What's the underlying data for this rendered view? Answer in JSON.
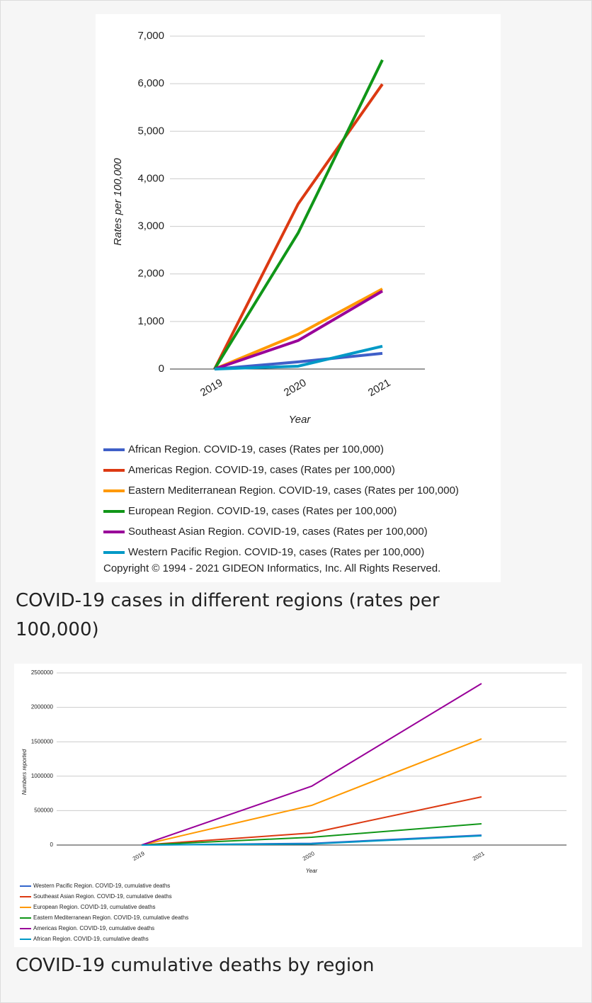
{
  "chart_data": [
    {
      "type": "line",
      "ylabel": "Rates per 100,000",
      "xlabel": "Year",
      "categories": [
        "2019",
        "2020",
        "2021"
      ],
      "ylim": [
        0,
        7000
      ],
      "yticks": [
        0,
        {
          "value": 1000,
          "label": "1,000"
        },
        {
          "value": 2000,
          "label": "2,000"
        },
        {
          "value": 3000,
          "label": "3,000"
        },
        {
          "value": 4000,
          "label": "4,000"
        },
        {
          "value": 5000,
          "label": "5,000"
        },
        {
          "value": 6000,
          "label": "6,000"
        },
        {
          "value": 7000,
          "label": "7,000"
        }
      ],
      "grid": true,
      "series": [
        {
          "name": "African Region. COVID-19, cases (Rates per 100,000)",
          "color": "#3f5fc8",
          "values": [
            0,
            150,
            330
          ]
        },
        {
          "name": "Americas Region. COVID-19, cases (Rates per 100,000)",
          "color": "#dc3912",
          "values": [
            0,
            3470,
            5990
          ]
        },
        {
          "name": "Eastern Mediterranean Region. COVID-19, cases (Rates per 100,000)",
          "color": "#ff9900",
          "values": [
            0,
            730,
            1685
          ]
        },
        {
          "name": "European Region. COVID-19, cases (Rates per 100,000)",
          "color": "#109618",
          "values": [
            0,
            2860,
            6500
          ]
        },
        {
          "name": "Southeast Asian Region. COVID-19, cases (Rates per 100,000)",
          "color": "#990099",
          "values": [
            0,
            600,
            1640
          ]
        },
        {
          "name": "Western Pacific Region. COVID-19, cases (Rates per 100,000)",
          "color": "#0099c6",
          "values": [
            0,
            60,
            480
          ]
        }
      ],
      "footer": "Copyright © 1994 - 2021 GIDEON Informatics, Inc. All Rights Reserved."
    },
    {
      "type": "line",
      "ylabel": "Numbers reported",
      "xlabel": "Year",
      "categories": [
        "2019",
        "2020",
        "2021"
      ],
      "ylim": [
        0,
        2500000
      ],
      "yticks": [
        0,
        500000,
        1000000,
        1500000,
        2000000,
        2500000
      ],
      "grid": true,
      "series": [
        {
          "name": "Western Pacific Region. COVID-19, cumulative deaths",
          "color": "#3366cc",
          "values": [
            0,
            25000,
            144000
          ]
        },
        {
          "name": "Southeast Asian Region. COVID-19, cumulative deaths",
          "color": "#dc3912",
          "values": [
            0,
            175000,
            700000
          ]
        },
        {
          "name": "European Region. COVID-19, cumulative deaths",
          "color": "#ff9900",
          "values": [
            0,
            576000,
            1543000
          ]
        },
        {
          "name": "Eastern Mediterranean Region. COVID-19, cumulative deaths",
          "color": "#109618",
          "values": [
            0,
            113000,
            309000
          ]
        },
        {
          "name": "Americas Region. COVID-19, cumulative deaths",
          "color": "#990099",
          "values": [
            0,
            854000,
            2346000
          ]
        },
        {
          "name": "African Region. COVID-19, cumulative deaths",
          "color": "#0099c6",
          "values": [
            0,
            15000,
            134000
          ]
        }
      ]
    }
  ],
  "captions": [
    "COVID-19 cases in different regions (rates per 100,000)",
    "COVID-19 cumulative deaths by region"
  ]
}
